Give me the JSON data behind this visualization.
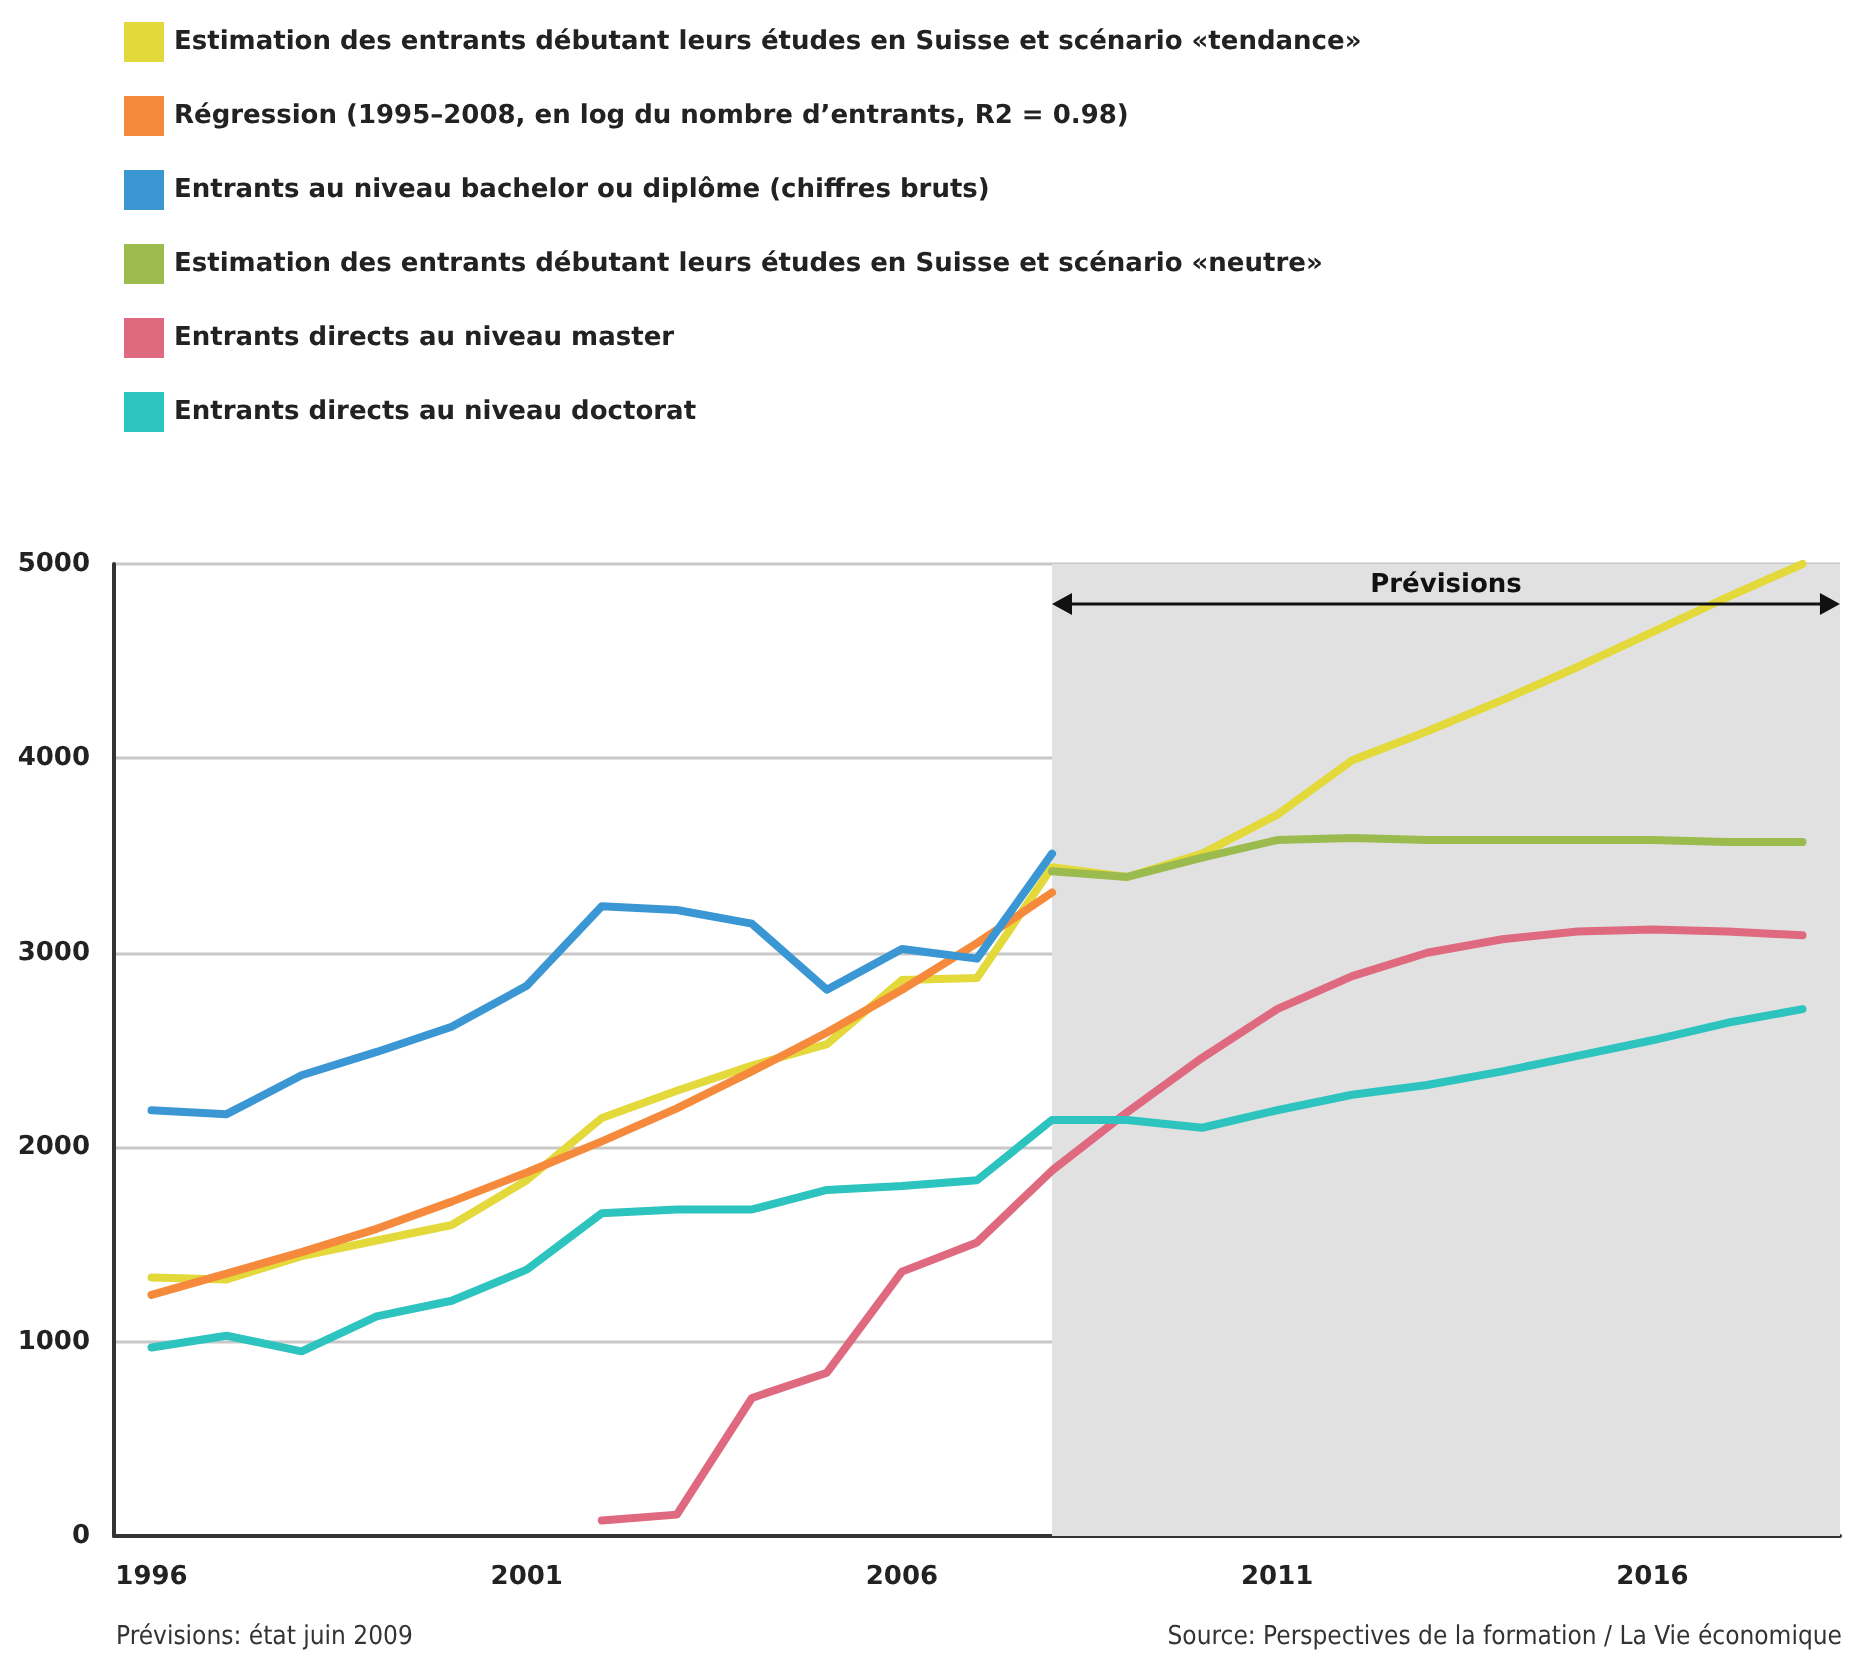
{
  "chart_data": {
    "type": "line",
    "x": [
      1996,
      1997,
      1998,
      1999,
      2000,
      2001,
      2002,
      2003,
      2004,
      2005,
      2006,
      2007,
      2008,
      2009,
      2010,
      2011,
      2012,
      2013,
      2014,
      2015,
      2016,
      2017,
      2018
    ],
    "series": [
      {
        "name": "Estimation des entrants débutant leurs études en Suisse et scénario «tendance»",
        "color": "#e3d93a",
        "values": [
          1330,
          1320,
          1440,
          1520,
          1600,
          1830,
          2150,
          2290,
          2420,
          2530,
          2860,
          2870,
          3440,
          3390,
          3510,
          3710,
          3990,
          4140,
          4300,
          4470,
          4650,
          4830,
          5000
        ]
      },
      {
        "name": "Régression (1995–2008, en log du nombre d’entrants, R2 = 0.98)",
        "color": "#f68a3c",
        "values": [
          1240,
          1350,
          1460,
          1580,
          1720,
          1870,
          2030,
          2200,
          2390,
          2590,
          2810,
          3050,
          3310,
          null,
          null,
          null,
          null,
          null,
          null,
          null,
          null,
          null,
          null
        ]
      },
      {
        "name": "Entrants au niveau bachelor ou diplôme (chiffres bruts)",
        "color": "#3a97d3",
        "values": [
          2190,
          2170,
          2370,
          2490,
          2620,
          2830,
          3240,
          3220,
          3150,
          2810,
          3020,
          2970,
          3510,
          null,
          null,
          null,
          null,
          null,
          null,
          null,
          null,
          null,
          null
        ]
      },
      {
        "name": "Estimation des entrants débutant leurs études en Suisse et scénario «neutre»",
        "color": "#9bbb4f",
        "values": [
          null,
          null,
          null,
          null,
          null,
          null,
          null,
          null,
          null,
          null,
          null,
          null,
          3420,
          3390,
          3490,
          3580,
          3590,
          3580,
          3580,
          3580,
          3580,
          3570,
          3570
        ]
      },
      {
        "name": "Entrants directs au niveau master",
        "color": "#df6a80",
        "values": [
          null,
          null,
          null,
          null,
          null,
          null,
          80,
          110,
          710,
          840,
          1360,
          1510,
          1880,
          2180,
          2460,
          2710,
          2880,
          3000,
          3070,
          3110,
          3120,
          3110,
          3090
        ]
      },
      {
        "name": "Entrants directs au niveau doctorat",
        "color": "#2dc3bf",
        "values": [
          970,
          1030,
          950,
          1130,
          1210,
          1370,
          1660,
          1680,
          1680,
          1780,
          1800,
          1830,
          2140,
          2140,
          2100,
          2190,
          2270,
          2320,
          2390,
          2470,
          2550,
          2640,
          2710
        ]
      }
    ],
    "xlim": [
      1995.5,
      2018.5
    ],
    "xticks": [
      1996,
      2001,
      2006,
      2011,
      2016
    ],
    "ylim": [
      0,
      5000
    ],
    "yticks": [
      0,
      1000,
      2000,
      3000,
      4000,
      5000
    ],
    "bands": [
      {
        "axis": "x",
        "from": 2008,
        "to": 2018.5,
        "label": "Prévisions",
        "color": "#e1e1e1"
      }
    ],
    "annotations": [
      "Prévisions: état juin 2009",
      "Source: Perspectives de la formation / La Vie économique"
    ],
    "grid": "y",
    "legend": "top left",
    "marker": "none",
    "line_style": "solid"
  }
}
